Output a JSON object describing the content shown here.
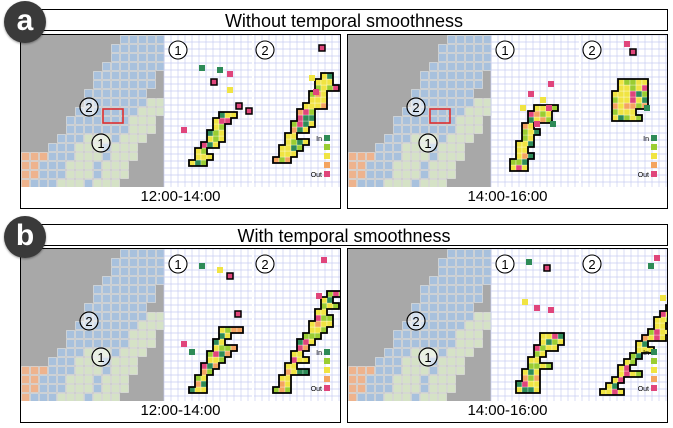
{
  "sections": [
    {
      "badge": "a",
      "title": "Without temporal smoothness",
      "panels": [
        {
          "time": "12:00-14:00",
          "label_left": "1",
          "label_right": "2",
          "map_label_top": "2",
          "map_label_bottom": "1",
          "legend_in": "In",
          "legend_out": "Out"
        },
        {
          "time": "14:00-16:00",
          "label_left": "1",
          "label_right": "2",
          "map_label_top": "2",
          "map_label_bottom": "1",
          "legend_in": "In",
          "legend_out": "Out"
        }
      ]
    },
    {
      "badge": "b",
      "title": "With temporal smoothness",
      "panels": [
        {
          "time": "12:00-14:00",
          "label_left": "1",
          "label_right": "2",
          "map_label_top": "2",
          "map_label_bottom": "1",
          "legend_in": "In",
          "legend_out": "Out"
        },
        {
          "time": "14:00-16:00",
          "label_left": "1",
          "label_right": "2",
          "map_label_top": "2",
          "map_label_bottom": "1",
          "legend_in": "In",
          "legend_out": "Out"
        }
      ]
    }
  ],
  "legend_colors": [
    "#2e8b57",
    "#9acd32",
    "#f0e442",
    "#f4a460",
    "#e0457b"
  ],
  "region_colors": {
    "region_2": "#a9c3e0",
    "region_1": "#d8e6c8",
    "warm": "#f2b48c",
    "map_bg": "#a8a8a8",
    "highlight": "#e03030"
  }
}
